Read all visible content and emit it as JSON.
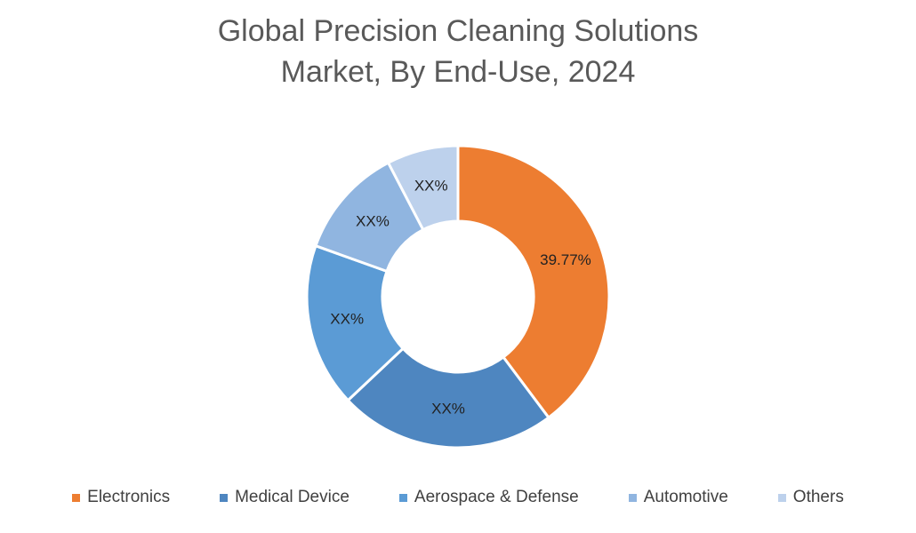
{
  "chart_data": {
    "type": "donut",
    "title": "Global Precision Cleaning Solutions Market, By End-Use, 2024",
    "categories": [
      "Electronics",
      "Medical Device",
      "Aerospace & Defense",
      "Automotive",
      "Others"
    ],
    "values": [
      39.77,
      23.2,
      17.5,
      11.9,
      7.63
    ],
    "value_labels": [
      "39.77%",
      "XX%",
      "XX%",
      "XX%",
      "XX%"
    ],
    "colors": [
      "#ed7d31",
      "#4e86c0",
      "#5b9bd5",
      "#90b5e0",
      "#bdd1ec"
    ]
  }
}
